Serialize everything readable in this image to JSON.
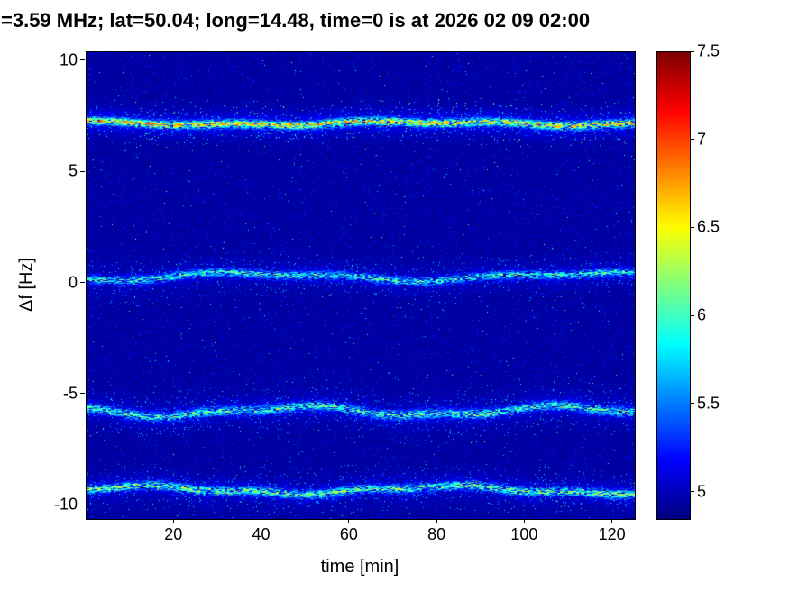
{
  "title": "=3.59 MHz;  lat=50.04; long=14.48, time=0 is at 2026 02 09 02:00",
  "chart_data": {
    "type": "heatmap",
    "title": "=3.59 MHz;  lat=50.04; long=14.48, time=0 is at 2026 02 09 02:00",
    "xlabel": "time [min]",
    "ylabel": "Δf [Hz]",
    "xlim": [
      0,
      125
    ],
    "ylim": [
      -10.6,
      10.4
    ],
    "xticks": [
      20,
      40,
      60,
      80,
      100,
      120
    ],
    "yticks": [
      -10,
      -5,
      0,
      5,
      10
    ],
    "colormap": "jet",
    "colorbar": {
      "min": 4.85,
      "max": 7.5,
      "ticks": [
        5,
        5.5,
        6,
        6.5,
        7,
        7.5
      ]
    },
    "background": {
      "base": 4.87,
      "jitter": 0.14,
      "speckle_prob": 0.045,
      "speckle_gain": 0.38,
      "bright_prob": 0.004,
      "bright_gain": 0.95
    },
    "bands": [
      {
        "label": "doppler-trace +7.2 Hz",
        "center": 7.2,
        "amp1": 0.07,
        "per1": 80,
        "ph1": 2.0,
        "amp2": 0.05,
        "per2": 30,
        "ph2": 0.8,
        "core_w": 0.11,
        "halo_w": 0.5,
        "peak": 6.9,
        "density": 1.0,
        "hot_prob": 0.02,
        "hot_level": 7.15
      },
      {
        "label": "doppler-trace +0.3 Hz",
        "center": 0.3,
        "amp1": 0.16,
        "per1": 75,
        "ph1": -1.6,
        "amp2": 0.07,
        "per2": 32,
        "ph2": 2.4,
        "core_w": 0.12,
        "halo_w": 0.55,
        "peak": 6.25,
        "density": 0.75,
        "hot_prob": 0.004,
        "hot_level": 6.7
      },
      {
        "label": "doppler-trace -5.75 Hz",
        "center": -5.75,
        "amp1": 0.2,
        "per1": 60,
        "ph1": 2.8,
        "amp2": 0.08,
        "per2": 26,
        "ph2": 1.1,
        "core_w": 0.13,
        "halo_w": 0.6,
        "peak": 6.35,
        "density": 0.78,
        "hot_prob": 0.007,
        "hot_level": 6.9
      },
      {
        "label": "doppler-trace -9.3 Hz",
        "center": -9.3,
        "amp1": 0.16,
        "per1": 70,
        "ph1": 0.5,
        "amp2": 0.06,
        "per2": 24,
        "ph2": 3.9,
        "core_w": 0.12,
        "halo_w": 0.55,
        "peak": 6.45,
        "density": 0.78,
        "hot_prob": 0.01,
        "hot_level": 7.0
      }
    ]
  }
}
